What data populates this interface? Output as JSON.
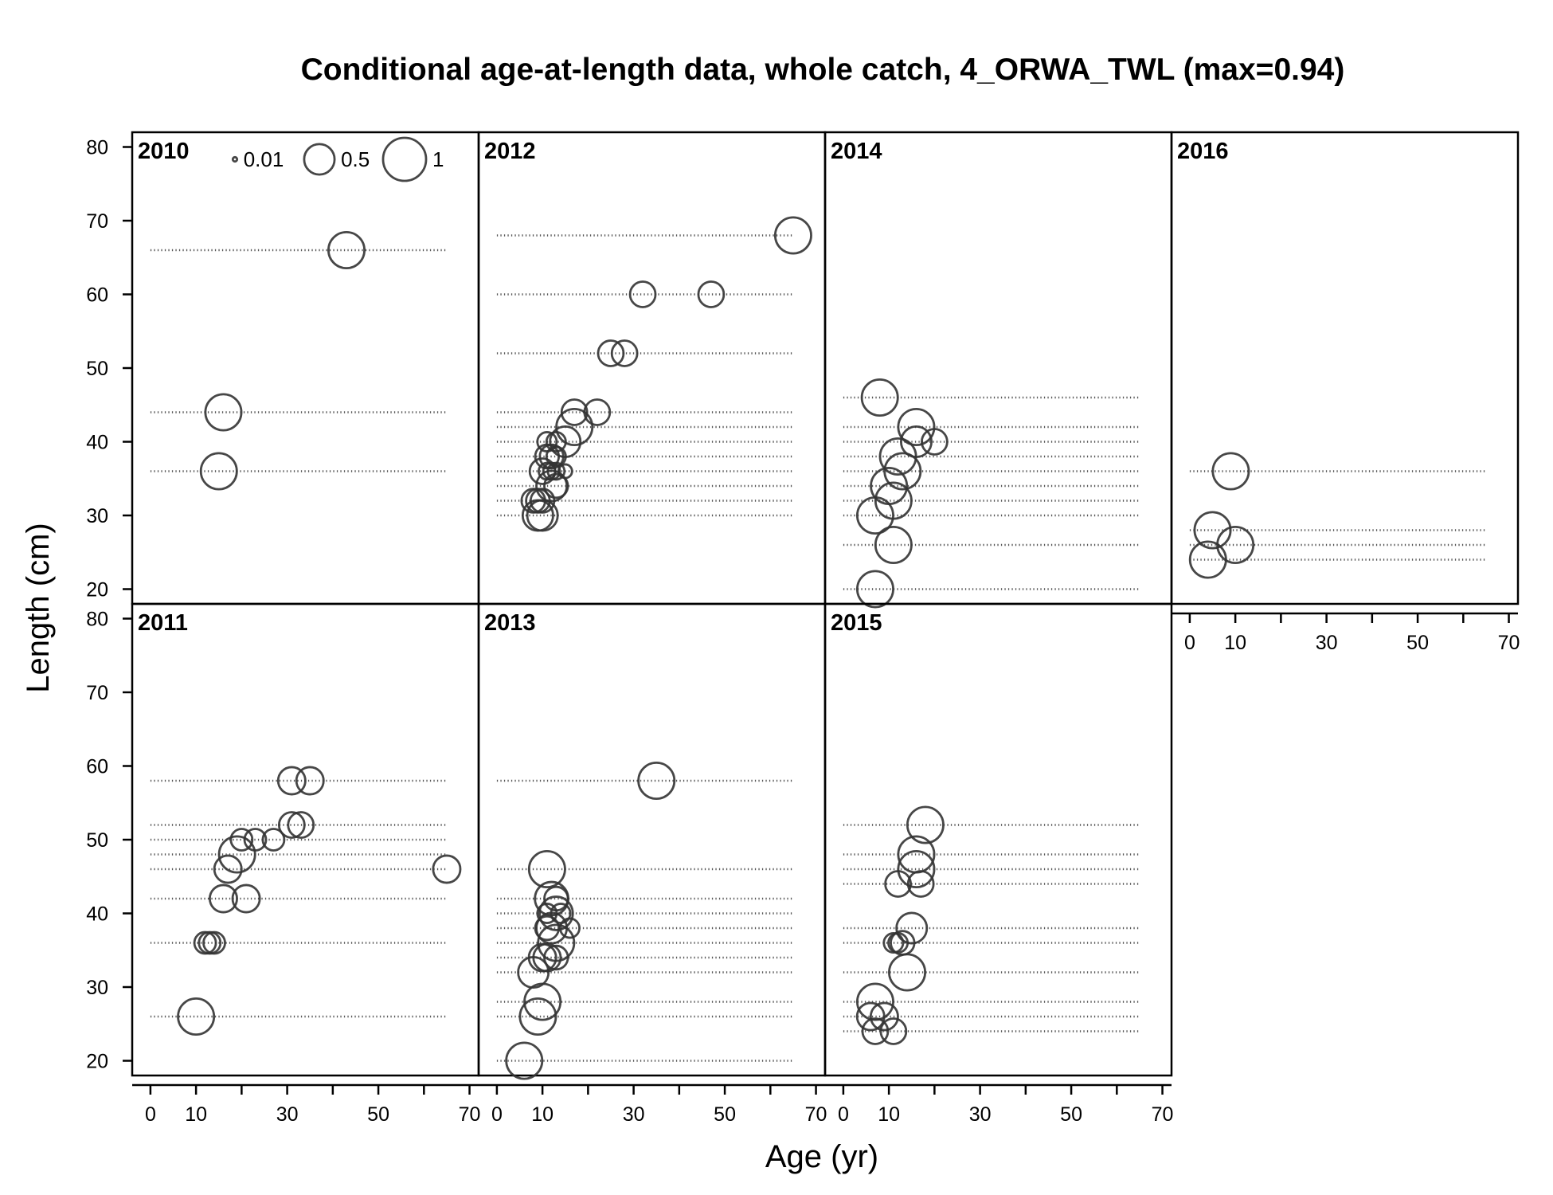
{
  "chart_data": {
    "type": "scatter",
    "title": "Conditional age-at-length data, whole catch, 4_ORWA_TWL (max=0.94)",
    "xlabel": "Age (yr)",
    "ylabel": "Length (cm)",
    "xlim": [
      -4,
      72
    ],
    "ylim": [
      18,
      82
    ],
    "x_ticks": [
      0,
      10,
      20,
      30,
      40,
      50,
      60,
      70
    ],
    "x_tick_labels": [
      "0",
      "10",
      "30",
      "50",
      "70"
    ],
    "y_ticks": [
      20,
      30,
      40,
      50,
      60,
      70,
      80
    ],
    "y_tick_labels": [
      "20",
      "30",
      "40",
      "50",
      "60",
      "70",
      "80"
    ],
    "age_range_of_reference_lines": [
      0,
      65
    ],
    "point_encoding": "circle area proportional to proportion at age within length bin",
    "legend": {
      "placement": "top of first panel",
      "entries": [
        {
          "label": "0.01",
          "value": 0.01
        },
        {
          "label": "0.5",
          "value": 0.5
        },
        {
          "label": "1",
          "value": 1
        }
      ]
    },
    "panels": [
      {
        "year": "2010",
        "lengths": [
          36,
          44,
          66
        ],
        "points": [
          {
            "age": 15,
            "length": 36,
            "prop": 0.7
          },
          {
            "age": 16,
            "length": 44,
            "prop": 0.7
          },
          {
            "age": 43,
            "length": 66,
            "prop": 0.7
          }
        ]
      },
      {
        "year": "2011",
        "lengths": [
          26,
          36,
          42,
          46,
          48,
          50,
          52,
          58
        ],
        "points": [
          {
            "age": 10,
            "length": 26,
            "prop": 0.7
          },
          {
            "age": 12,
            "length": 36,
            "prop": 0.25
          },
          {
            "age": 13,
            "length": 36,
            "prop": 0.25
          },
          {
            "age": 14,
            "length": 36,
            "prop": 0.25
          },
          {
            "age": 16,
            "length": 42,
            "prop": 0.4
          },
          {
            "age": 21,
            "length": 42,
            "prop": 0.4
          },
          {
            "age": 17,
            "length": 46,
            "prop": 0.4
          },
          {
            "age": 65,
            "length": 46,
            "prop": 0.4
          },
          {
            "age": 19,
            "length": 48,
            "prop": 0.7
          },
          {
            "age": 20,
            "length": 50,
            "prop": 0.25
          },
          {
            "age": 23,
            "length": 50,
            "prop": 0.25
          },
          {
            "age": 27,
            "length": 50,
            "prop": 0.25
          },
          {
            "age": 31,
            "length": 52,
            "prop": 0.35
          },
          {
            "age": 33,
            "length": 52,
            "prop": 0.35
          },
          {
            "age": 31,
            "length": 58,
            "prop": 0.4
          },
          {
            "age": 35,
            "length": 58,
            "prop": 0.4
          }
        ]
      },
      {
        "year": "2012",
        "lengths": [
          30,
          32,
          34,
          36,
          38,
          40,
          42,
          44,
          52,
          60,
          68
        ],
        "points": [
          {
            "age": 9,
            "length": 30,
            "prop": 0.5
          },
          {
            "age": 10,
            "length": 30,
            "prop": 0.5
          },
          {
            "age": 8,
            "length": 32,
            "prop": 0.3
          },
          {
            "age": 9,
            "length": 32,
            "prop": 0.3
          },
          {
            "age": 10,
            "length": 32,
            "prop": 0.3
          },
          {
            "age": 12,
            "length": 34,
            "prop": 0.5
          },
          {
            "age": 13,
            "length": 34,
            "prop": 0.3
          },
          {
            "age": 10,
            "length": 36,
            "prop": 0.35
          },
          {
            "age": 11,
            "length": 36,
            "prop": 0.15
          },
          {
            "age": 12,
            "length": 36,
            "prop": 0.15
          },
          {
            "age": 13,
            "length": 36,
            "prop": 0.15
          },
          {
            "age": 15,
            "length": 36,
            "prop": 0.1
          },
          {
            "age": 11,
            "length": 38,
            "prop": 0.3
          },
          {
            "age": 12,
            "length": 38,
            "prop": 0.3
          },
          {
            "age": 13,
            "length": 38,
            "prop": 0.2
          },
          {
            "age": 11,
            "length": 40,
            "prop": 0.2
          },
          {
            "age": 13,
            "length": 40,
            "prop": 0.2
          },
          {
            "age": 15,
            "length": 40,
            "prop": 0.5
          },
          {
            "age": 17,
            "length": 42,
            "prop": 0.7
          },
          {
            "age": 17,
            "length": 44,
            "prop": 0.35
          },
          {
            "age": 22,
            "length": 44,
            "prop": 0.35
          },
          {
            "age": 25,
            "length": 52,
            "prop": 0.35
          },
          {
            "age": 28,
            "length": 52,
            "prop": 0.35
          },
          {
            "age": 32,
            "length": 60,
            "prop": 0.35
          },
          {
            "age": 47,
            "length": 60,
            "prop": 0.35
          },
          {
            "age": 65,
            "length": 68,
            "prop": 0.7
          }
        ]
      },
      {
        "year": "2013",
        "lengths": [
          20,
          26,
          28,
          32,
          34,
          36,
          38,
          40,
          42,
          46,
          58
        ],
        "points": [
          {
            "age": 6,
            "length": 20,
            "prop": 0.7
          },
          {
            "age": 9,
            "length": 26,
            "prop": 0.7
          },
          {
            "age": 10,
            "length": 28,
            "prop": 0.7
          },
          {
            "age": 8,
            "length": 32,
            "prop": 0.5
          },
          {
            "age": 10,
            "length": 34,
            "prop": 0.4
          },
          {
            "age": 11,
            "length": 34,
            "prop": 0.4
          },
          {
            "age": 13,
            "length": 34,
            "prop": 0.3
          },
          {
            "age": 13,
            "length": 36,
            "prop": 0.7
          },
          {
            "age": 11,
            "length": 38,
            "prop": 0.3
          },
          {
            "age": 12,
            "length": 38,
            "prop": 0.5
          },
          {
            "age": 16,
            "length": 38,
            "prop": 0.2
          },
          {
            "age": 11,
            "length": 40,
            "prop": 0.2
          },
          {
            "age": 13,
            "length": 40,
            "prop": 0.6
          },
          {
            "age": 14,
            "length": 40,
            "prop": 0.2
          },
          {
            "age": 12,
            "length": 42,
            "prop": 0.6
          },
          {
            "age": 13,
            "length": 42,
            "prop": 0.3
          },
          {
            "age": 11,
            "length": 46,
            "prop": 0.7
          },
          {
            "age": 35,
            "length": 58,
            "prop": 0.7
          }
        ]
      },
      {
        "year": "2014",
        "lengths": [
          20,
          26,
          30,
          32,
          34,
          36,
          38,
          40,
          42,
          46
        ],
        "points": [
          {
            "age": 7,
            "length": 20,
            "prop": 0.7
          },
          {
            "age": 11,
            "length": 26,
            "prop": 0.7
          },
          {
            "age": 7,
            "length": 30,
            "prop": 0.7
          },
          {
            "age": 11,
            "length": 32,
            "prop": 0.7
          },
          {
            "age": 10,
            "length": 34,
            "prop": 0.7
          },
          {
            "age": 13,
            "length": 36,
            "prop": 0.7
          },
          {
            "age": 12,
            "length": 38,
            "prop": 0.7
          },
          {
            "age": 16,
            "length": 40,
            "prop": 0.5
          },
          {
            "age": 20,
            "length": 40,
            "prop": 0.35
          },
          {
            "age": 16,
            "length": 42,
            "prop": 0.7
          },
          {
            "age": 8,
            "length": 46,
            "prop": 0.7
          }
        ]
      },
      {
        "year": "2015",
        "lengths": [
          24,
          26,
          28,
          32,
          36,
          38,
          44,
          46,
          48,
          52
        ],
        "points": [
          {
            "age": 7,
            "length": 24,
            "prop": 0.35
          },
          {
            "age": 11,
            "length": 24,
            "prop": 0.35
          },
          {
            "age": 6,
            "length": 26,
            "prop": 0.4
          },
          {
            "age": 9,
            "length": 26,
            "prop": 0.4
          },
          {
            "age": 7,
            "length": 28,
            "prop": 0.7
          },
          {
            "age": 14,
            "length": 32,
            "prop": 0.7
          },
          {
            "age": 11,
            "length": 36,
            "prop": 0.2
          },
          {
            "age": 12,
            "length": 36,
            "prop": 0.2
          },
          {
            "age": 13,
            "length": 36,
            "prop": 0.3
          },
          {
            "age": 15,
            "length": 38,
            "prop": 0.5
          },
          {
            "age": 12,
            "length": 44,
            "prop": 0.35
          },
          {
            "age": 17,
            "length": 44,
            "prop": 0.35
          },
          {
            "age": 16,
            "length": 46,
            "prop": 0.7
          },
          {
            "age": 16,
            "length": 48,
            "prop": 0.7
          },
          {
            "age": 18,
            "length": 52,
            "prop": 0.7
          }
        ]
      },
      {
        "year": "2016",
        "lengths": [
          24,
          26,
          28,
          36
        ],
        "points": [
          {
            "age": 4,
            "length": 24,
            "prop": 0.7
          },
          {
            "age": 10,
            "length": 26,
            "prop": 0.7
          },
          {
            "age": 5,
            "length": 28,
            "prop": 0.7
          },
          {
            "age": 9,
            "length": 36,
            "prop": 0.7
          }
        ]
      }
    ]
  }
}
